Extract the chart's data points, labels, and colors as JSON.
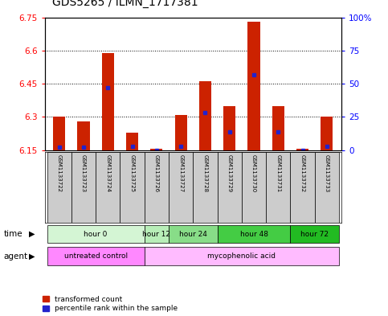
{
  "title": "GDS5265 / ILMN_1717381",
  "samples": [
    "GSM1133722",
    "GSM1133723",
    "GSM1133724",
    "GSM1133725",
    "GSM1133726",
    "GSM1133727",
    "GSM1133728",
    "GSM1133729",
    "GSM1133730",
    "GSM1133731",
    "GSM1133732",
    "GSM1133733"
  ],
  "transformed_count": [
    6.3,
    6.28,
    6.59,
    6.23,
    6.155,
    6.31,
    6.46,
    6.35,
    6.73,
    6.35,
    6.155,
    6.3
  ],
  "percentile_rank": [
    2,
    2,
    47,
    3,
    0,
    3,
    28,
    14,
    57,
    14,
    0,
    3
  ],
  "ylim_left": [
    6.15,
    6.75
  ],
  "ylim_right": [
    0,
    100
  ],
  "yticks_left": [
    6.15,
    6.3,
    6.45,
    6.6,
    6.75
  ],
  "yticks_right": [
    0,
    25,
    50,
    75,
    100
  ],
  "ytick_labels_left": [
    "6.15",
    "6.3",
    "6.45",
    "6.6",
    "6.75"
  ],
  "ytick_labels_right": [
    "0",
    "25",
    "50",
    "75",
    "100%"
  ],
  "bar_color": "#cc2200",
  "blue_color": "#2222cc",
  "baseline": 6.15,
  "time_groups": [
    {
      "label": "hour 0",
      "start": 0,
      "end": 3,
      "color": "#d4f5d4"
    },
    {
      "label": "hour 12",
      "start": 4,
      "end": 4,
      "color": "#b8eeb8"
    },
    {
      "label": "hour 24",
      "start": 5,
      "end": 6,
      "color": "#88dd88"
    },
    {
      "label": "hour 48",
      "start": 7,
      "end": 9,
      "color": "#44cc44"
    },
    {
      "label": "hour 72",
      "start": 10,
      "end": 11,
      "color": "#22bb22"
    }
  ],
  "agent_groups": [
    {
      "label": "untreated control",
      "start": 0,
      "end": 3,
      "color": "#ff88ff"
    },
    {
      "label": "mycophenolic acid",
      "start": 4,
      "end": 11,
      "color": "#ffbbff"
    }
  ],
  "sample_bg": "#cccccc",
  "bar_width": 0.5
}
